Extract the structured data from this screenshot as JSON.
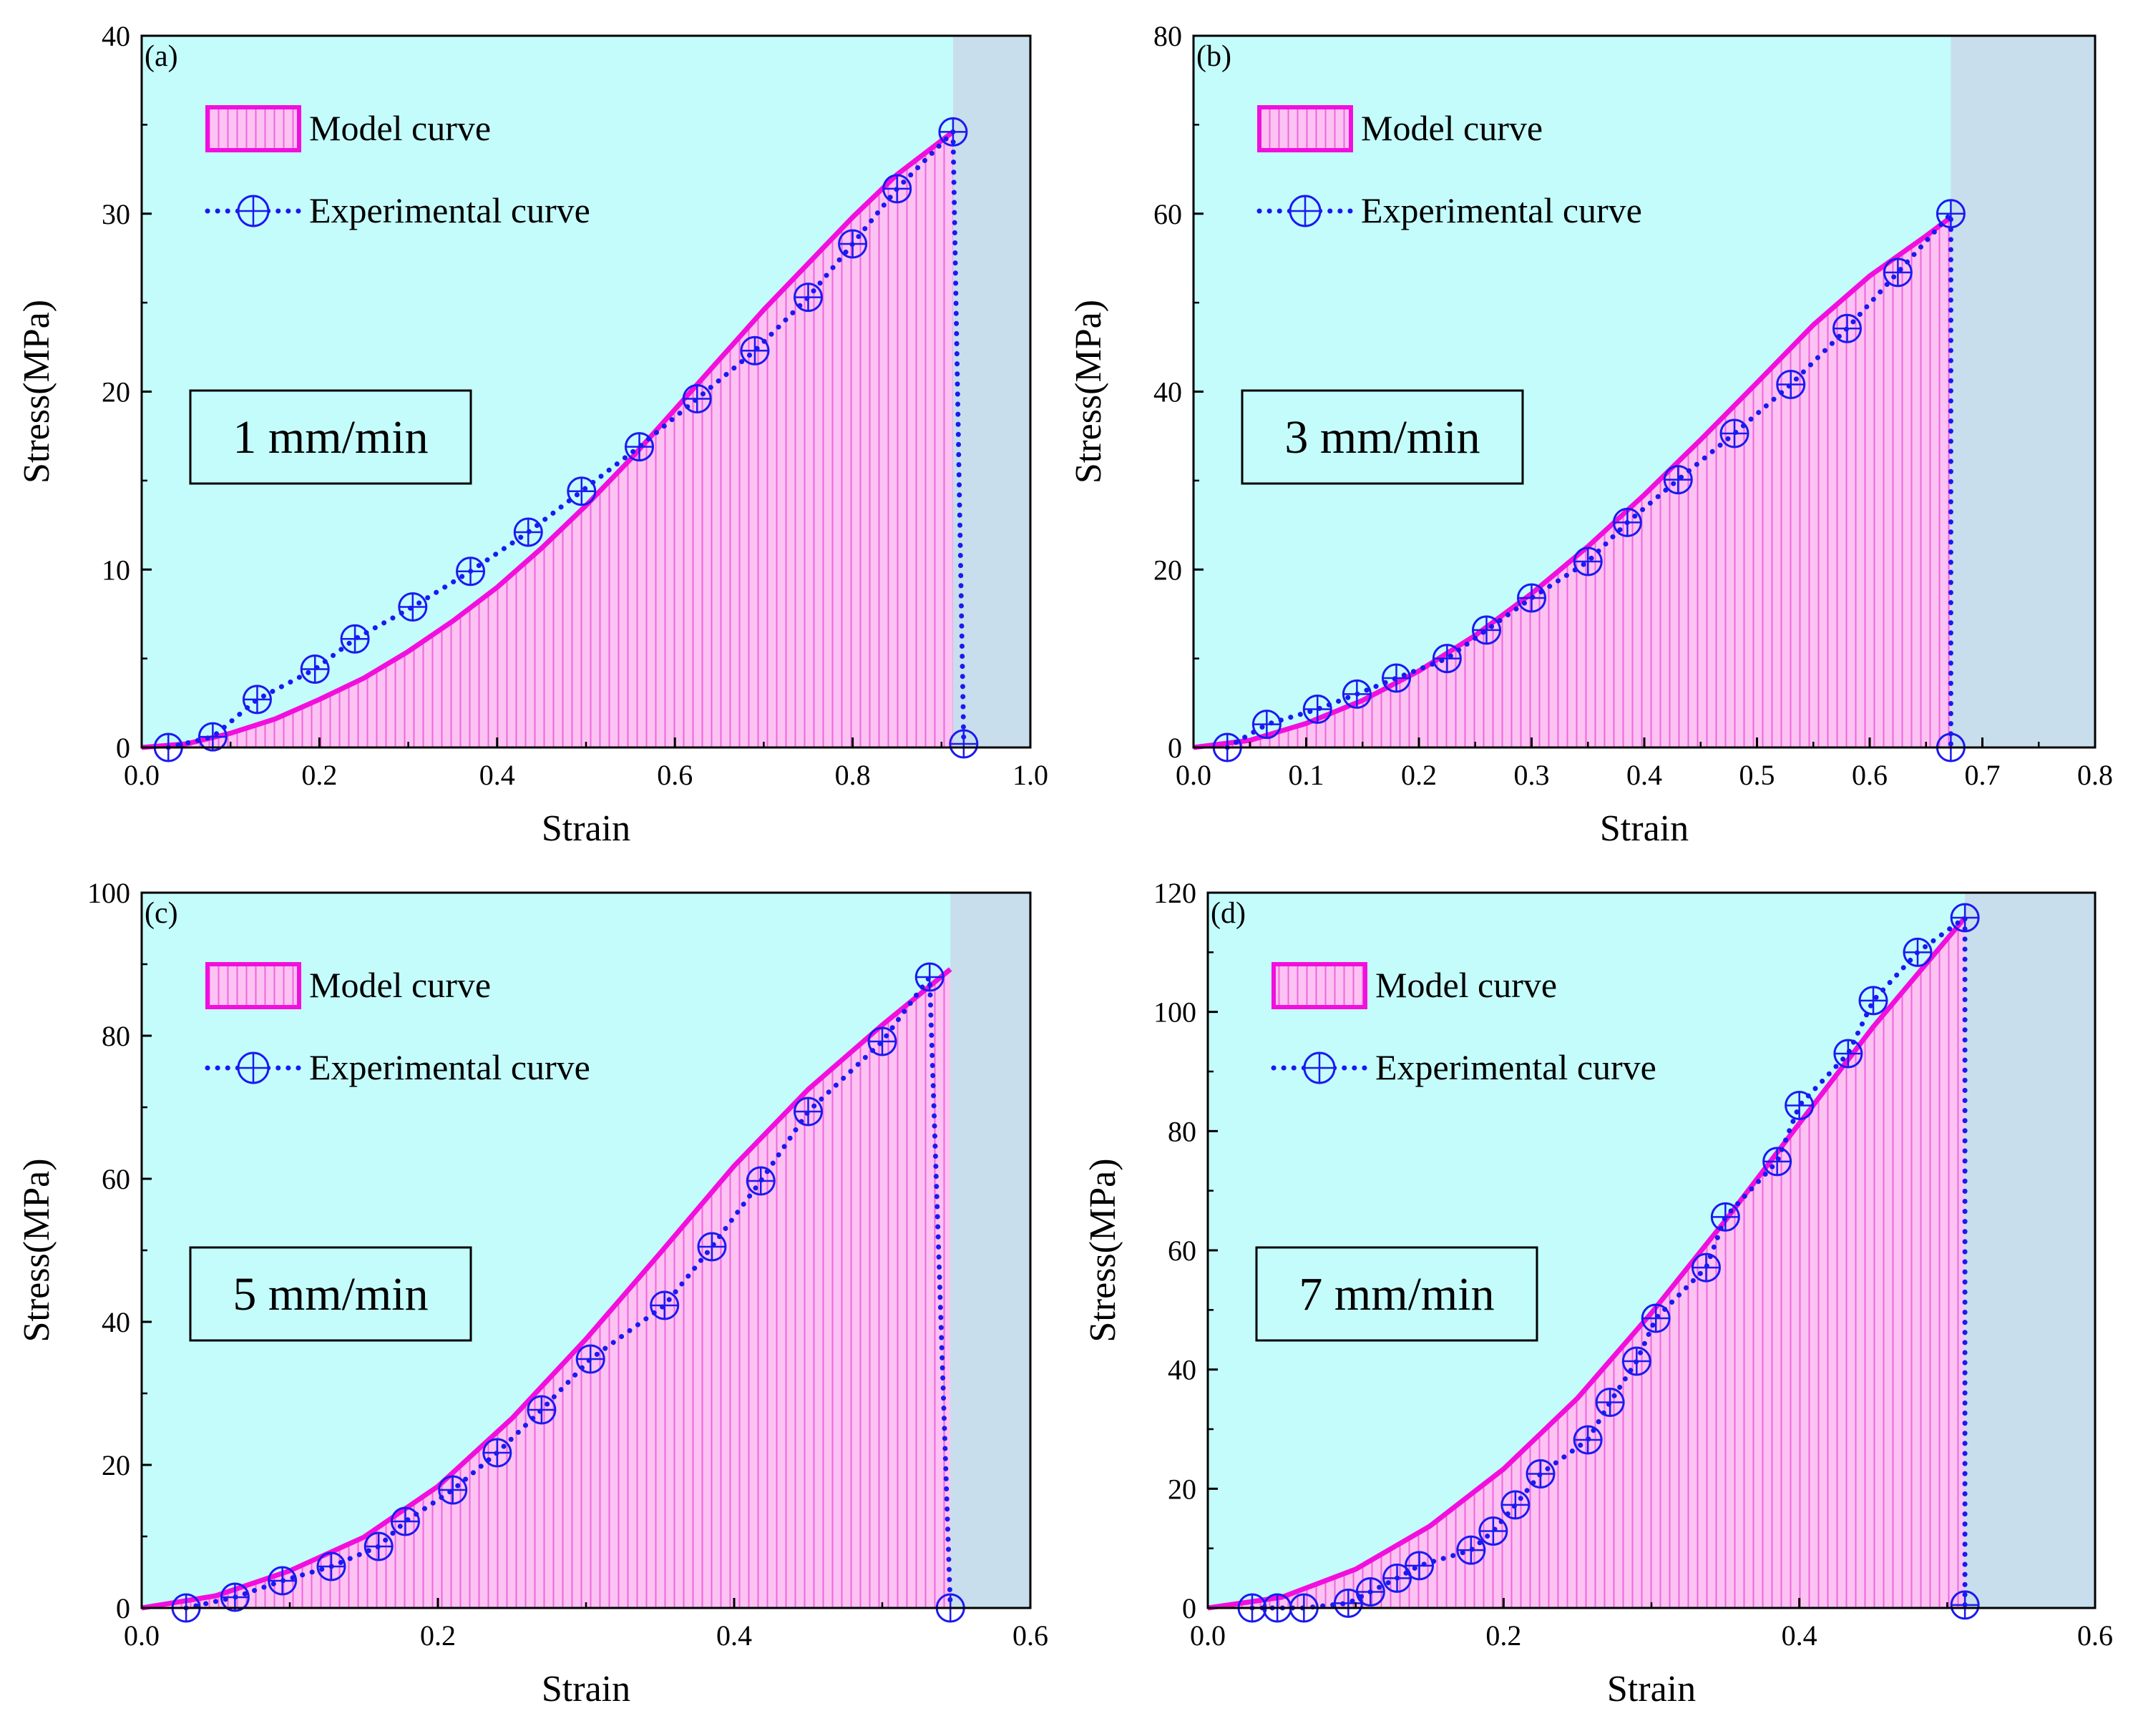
{
  "colors": {
    "background": "#c4fcfc",
    "post_failure_region": "#c8deec",
    "model_curve": "#f20fdd",
    "model_fill": "#fcc2f2",
    "model_hatch": "#ee66de",
    "experimental": "#1a1af0",
    "frame": "#000000"
  },
  "chart_data": [
    {
      "type": "line",
      "panel_label": "(a)",
      "rate_label": "1 mm/min",
      "xlabel": "Strain",
      "ylabel": "Stress(MPa)",
      "xlim": [
        0.0,
        1.0
      ],
      "ylim": [
        0,
        40
      ],
      "xticks": [
        0.0,
        0.2,
        0.4,
        0.6,
        0.8,
        1.0
      ],
      "xtick_labels": [
        "0.0",
        "0.2",
        "0.4",
        "0.6",
        "0.8",
        "1.0"
      ],
      "yticks": [
        0,
        10,
        20,
        30,
        40
      ],
      "ytick_labels": [
        "0",
        "10",
        "20",
        "30",
        "40"
      ],
      "failure_strain": 0.913,
      "legend_placement": "top-left",
      "series": [
        {
          "name": "Model curve",
          "style": "filled-hatched-line",
          "x": [
            0,
            0.05,
            0.1,
            0.15,
            0.2,
            0.25,
            0.3,
            0.35,
            0.4,
            0.45,
            0.5,
            0.55,
            0.6,
            0.65,
            0.7,
            0.75,
            0.8,
            0.85,
            0.913
          ],
          "y": [
            0,
            0.2,
            0.8,
            1.6,
            2.7,
            3.9,
            5.4,
            7.1,
            9.0,
            11.2,
            13.6,
            16.2,
            19.0,
            21.8,
            24.6,
            27.2,
            29.8,
            32.2,
            34.6
          ]
        },
        {
          "name": "Experimental curve",
          "style": "dotted-circle-plus",
          "x": [
            0.03,
            0.08,
            0.13,
            0.195,
            0.24,
            0.305,
            0.37,
            0.435,
            0.495,
            0.56,
            0.625,
            0.69,
            0.75,
            0.8,
            0.85,
            0.913,
            0.925
          ],
          "y": [
            0,
            0.6,
            2.7,
            4.4,
            6.1,
            7.9,
            9.9,
            12.1,
            14.4,
            16.9,
            19.6,
            22.3,
            25.3,
            28.3,
            31.4,
            34.6,
            0.2
          ]
        }
      ]
    },
    {
      "type": "line",
      "panel_label": "(b)",
      "rate_label": "3 mm/min",
      "xlabel": "Strain",
      "ylabel": "Stress(MPa)",
      "xlim": [
        0.0,
        0.8
      ],
      "ylim": [
        0,
        80
      ],
      "xticks": [
        0.0,
        0.1,
        0.2,
        0.3,
        0.4,
        0.5,
        0.6,
        0.7,
        0.8
      ],
      "xtick_labels": [
        "0.0",
        "0.1",
        "0.2",
        "0.3",
        "0.4",
        "0.5",
        "0.6",
        "0.7",
        "0.8"
      ],
      "yticks": [
        0,
        20,
        40,
        60,
        80
      ],
      "ytick_labels": [
        "0",
        "20",
        "40",
        "60",
        "80"
      ],
      "failure_strain": 0.672,
      "legend_placement": "top-left",
      "series": [
        {
          "name": "Model curve",
          "style": "filled-hatched-line",
          "x": [
            0,
            0.05,
            0.1,
            0.15,
            0.2,
            0.25,
            0.3,
            0.35,
            0.4,
            0.45,
            0.5,
            0.55,
            0.6,
            0.65,
            0.672
          ],
          "y": [
            0,
            0.8,
            2.7,
            5.3,
            8.6,
            12.6,
            17.3,
            22.6,
            28.4,
            34.6,
            41.0,
            47.5,
            53.0,
            57.5,
            59.6
          ]
        },
        {
          "name": "Experimental curve",
          "style": "dotted-circle-plus",
          "x": [
            0.03,
            0.065,
            0.11,
            0.145,
            0.18,
            0.225,
            0.26,
            0.3,
            0.35,
            0.385,
            0.43,
            0.48,
            0.53,
            0.58,
            0.625,
            0.672,
            0.672
          ],
          "y": [
            0,
            2.6,
            4.3,
            6.0,
            7.8,
            10.0,
            13.2,
            16.8,
            20.9,
            25.3,
            30.1,
            35.3,
            40.8,
            47.1,
            53.4,
            60.0,
            0
          ]
        }
      ]
    },
    {
      "type": "line",
      "panel_label": "(c)",
      "rate_label": "5 mm/min",
      "xlabel": "Strain",
      "ylabel": "Stress(MPa)",
      "xlim": [
        0.0,
        0.6
      ],
      "ylim": [
        0,
        100
      ],
      "xticks": [
        0.0,
        0.2,
        0.4,
        0.6
      ],
      "xtick_labels": [
        "0.0",
        "0.2",
        "0.4",
        "0.6"
      ],
      "yticks": [
        0,
        20,
        40,
        60,
        80,
        100
      ],
      "ytick_labels": [
        "0",
        "20",
        "40",
        "60",
        "80",
        "100"
      ],
      "failure_strain": 0.546,
      "legend_placement": "top-left",
      "series": [
        {
          "name": "Model curve",
          "style": "filled-hatched-line",
          "x": [
            0,
            0.05,
            0.1,
            0.15,
            0.2,
            0.25,
            0.3,
            0.35,
            0.4,
            0.45,
            0.5,
            0.546
          ],
          "y": [
            0,
            1.7,
            5.2,
            9.9,
            17.0,
            26.5,
            37.6,
            49.6,
            61.8,
            72.5,
            81.5,
            89.3
          ]
        },
        {
          "name": "Experimental curve",
          "style": "dotted-circle-plus",
          "x": [
            0.03,
            0.063,
            0.095,
            0.128,
            0.16,
            0.178,
            0.21,
            0.24,
            0.27,
            0.303,
            0.353,
            0.385,
            0.418,
            0.45,
            0.5,
            0.532,
            0.546
          ],
          "y": [
            0,
            1.5,
            3.8,
            5.8,
            8.6,
            12.1,
            16.5,
            21.7,
            27.7,
            34.8,
            42.3,
            50.5,
            59.7,
            69.4,
            79.2,
            88.2,
            0
          ]
        }
      ]
    },
    {
      "type": "line",
      "panel_label": "(d)",
      "rate_label": "7 mm/min",
      "xlabel": "Strain",
      "ylabel": "Stress(MPa)",
      "xlim": [
        0.0,
        0.6
      ],
      "ylim": [
        0,
        120
      ],
      "xticks": [
        0.0,
        0.2,
        0.4,
        0.6
      ],
      "xtick_labels": [
        "0.0",
        "0.2",
        "0.4",
        "0.6"
      ],
      "yticks": [
        0,
        20,
        40,
        60,
        80,
        100,
        120
      ],
      "ytick_labels": [
        "0",
        "20",
        "40",
        "60",
        "80",
        "100",
        "120"
      ],
      "failure_strain": 0.512,
      "legend_placement": "top-left",
      "series": [
        {
          "name": "Model curve",
          "style": "filled-hatched-line",
          "x": [
            0,
            0.05,
            0.1,
            0.15,
            0.2,
            0.25,
            0.3,
            0.35,
            0.4,
            0.45,
            0.512
          ],
          "y": [
            0,
            1.8,
            6.5,
            13.7,
            23.3,
            35.2,
            49.5,
            65.0,
            81.3,
            97.5,
            115.8
          ]
        },
        {
          "name": "Experimental curve",
          "style": "dotted-circle-plus",
          "x": [
            0.03,
            0.047,
            0.065,
            0.095,
            0.11,
            0.128,
            0.143,
            0.178,
            0.193,
            0.208,
            0.225,
            0.257,
            0.272,
            0.29,
            0.303,
            0.337,
            0.35,
            0.385,
            0.4,
            0.433,
            0.45,
            0.48,
            0.512,
            0.512
          ],
          "y": [
            0,
            0,
            0,
            0.8,
            2.7,
            5.0,
            7.1,
            9.7,
            12.9,
            17.3,
            22.5,
            28.2,
            34.5,
            41.4,
            48.6,
            57.1,
            65.6,
            74.9,
            84.3,
            93.0,
            101.9,
            110.0,
            115.8,
            0.5
          ]
        }
      ]
    }
  ]
}
